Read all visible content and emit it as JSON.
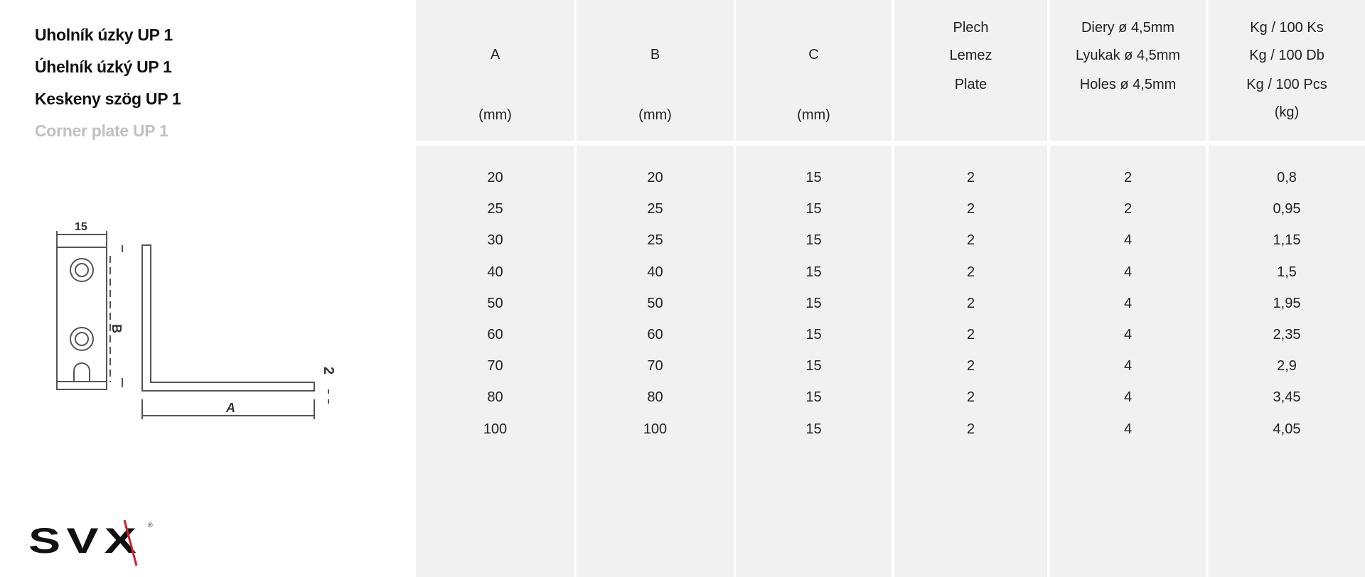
{
  "titles": [
    "Uholník úzky UP 1",
    "Úhelník úzký UP 1",
    "Keskeny szög UP 1",
    "Corner plate UP 1"
  ],
  "drawing": {
    "labels": {
      "width": "15",
      "b": "B",
      "a": "A",
      "thickness": "2"
    }
  },
  "logo": {
    "text": "SVX",
    "accent": "#d0202a"
  },
  "table": {
    "columns": [
      {
        "lines": [
          "A",
          "",
          "(mm)"
        ]
      },
      {
        "lines": [
          "B",
          "",
          "(mm)"
        ]
      },
      {
        "lines": [
          "C",
          "",
          "(mm)"
        ]
      },
      {
        "lines": [
          "Plech",
          "Lemez",
          "Plate"
        ]
      },
      {
        "lines": [
          "Diery ø 4,5mm",
          "Lyukak ø 4,5mm",
          "Holes ø 4,5mm"
        ]
      },
      {
        "lines": [
          "Kg / 100 Ks",
          "Kg / 100 Db",
          "Kg / 100 Pcs",
          "(kg)"
        ]
      }
    ],
    "rows": [
      [
        "20",
        "20",
        "15",
        "2",
        "2",
        "0,8"
      ],
      [
        "25",
        "25",
        "15",
        "2",
        "2",
        "0,95"
      ],
      [
        "30",
        "25",
        "15",
        "2",
        "4",
        "1,15"
      ],
      [
        "40",
        "40",
        "15",
        "2",
        "4",
        "1,5"
      ],
      [
        "50",
        "50",
        "15",
        "2",
        "4",
        "1,95"
      ],
      [
        "60",
        "60",
        "15",
        "2",
        "4",
        "2,35"
      ],
      [
        "70",
        "70",
        "15",
        "2",
        "4",
        "2,9"
      ],
      [
        "80",
        "80",
        "15",
        "2",
        "4",
        "3,45"
      ],
      [
        "100",
        "100",
        "15",
        "2",
        "4",
        "4,05"
      ]
    ],
    "colors": {
      "cell_bg": "#f1f1f1"
    }
  }
}
